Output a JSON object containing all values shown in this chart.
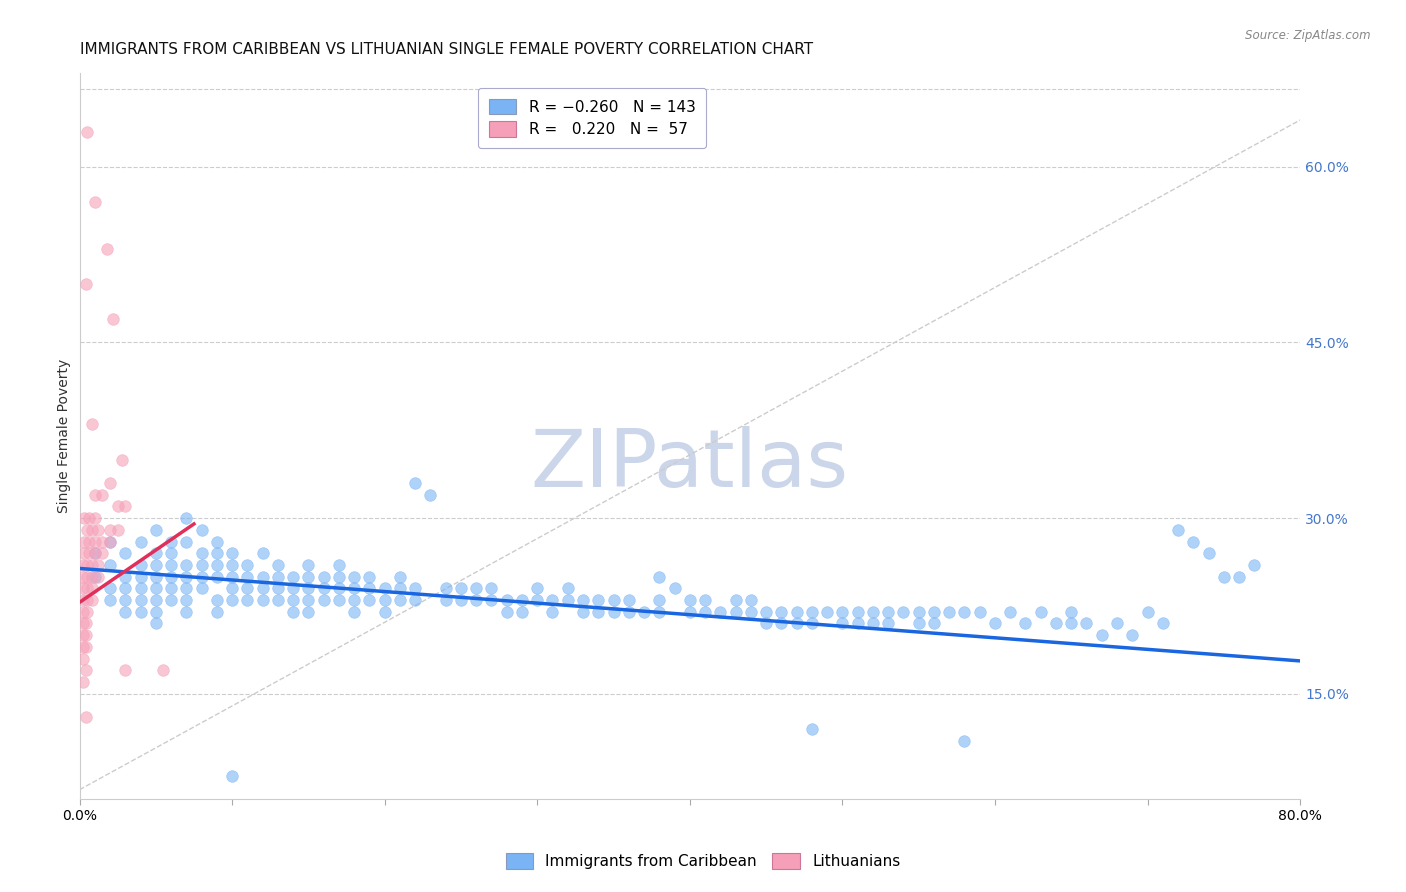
{
  "title": "IMMIGRANTS FROM CARIBBEAN VS LITHUANIAN SINGLE FEMALE POVERTY CORRELATION CHART",
  "source": "Source: ZipAtlas.com",
  "ylabel": "Single Female Poverty",
  "right_yticks": [
    0.15,
    0.3,
    0.45,
    0.6
  ],
  "right_ytick_labels": [
    "15.0%",
    "30.0%",
    "45.0%",
    "60.0%"
  ],
  "blue_scatter": [
    [
      0.01,
      0.27
    ],
    [
      0.01,
      0.25
    ],
    [
      0.02,
      0.28
    ],
    [
      0.02,
      0.26
    ],
    [
      0.02,
      0.24
    ],
    [
      0.02,
      0.23
    ],
    [
      0.03,
      0.27
    ],
    [
      0.03,
      0.25
    ],
    [
      0.03,
      0.24
    ],
    [
      0.03,
      0.23
    ],
    [
      0.03,
      0.22
    ],
    [
      0.04,
      0.28
    ],
    [
      0.04,
      0.26
    ],
    [
      0.04,
      0.25
    ],
    [
      0.04,
      0.24
    ],
    [
      0.04,
      0.23
    ],
    [
      0.04,
      0.22
    ],
    [
      0.05,
      0.29
    ],
    [
      0.05,
      0.27
    ],
    [
      0.05,
      0.26
    ],
    [
      0.05,
      0.25
    ],
    [
      0.05,
      0.24
    ],
    [
      0.05,
      0.23
    ],
    [
      0.05,
      0.22
    ],
    [
      0.05,
      0.21
    ],
    [
      0.06,
      0.28
    ],
    [
      0.06,
      0.27
    ],
    [
      0.06,
      0.26
    ],
    [
      0.06,
      0.25
    ],
    [
      0.06,
      0.24
    ],
    [
      0.06,
      0.23
    ],
    [
      0.07,
      0.3
    ],
    [
      0.07,
      0.28
    ],
    [
      0.07,
      0.26
    ],
    [
      0.07,
      0.25
    ],
    [
      0.07,
      0.24
    ],
    [
      0.07,
      0.23
    ],
    [
      0.07,
      0.22
    ],
    [
      0.08,
      0.29
    ],
    [
      0.08,
      0.27
    ],
    [
      0.08,
      0.26
    ],
    [
      0.08,
      0.25
    ],
    [
      0.08,
      0.24
    ],
    [
      0.09,
      0.28
    ],
    [
      0.09,
      0.27
    ],
    [
      0.09,
      0.26
    ],
    [
      0.09,
      0.25
    ],
    [
      0.09,
      0.23
    ],
    [
      0.09,
      0.22
    ],
    [
      0.1,
      0.27
    ],
    [
      0.1,
      0.26
    ],
    [
      0.1,
      0.25
    ],
    [
      0.1,
      0.24
    ],
    [
      0.1,
      0.23
    ],
    [
      0.11,
      0.26
    ],
    [
      0.11,
      0.25
    ],
    [
      0.11,
      0.24
    ],
    [
      0.11,
      0.23
    ],
    [
      0.12,
      0.27
    ],
    [
      0.12,
      0.25
    ],
    [
      0.12,
      0.24
    ],
    [
      0.12,
      0.23
    ],
    [
      0.13,
      0.26
    ],
    [
      0.13,
      0.25
    ],
    [
      0.13,
      0.24
    ],
    [
      0.13,
      0.23
    ],
    [
      0.14,
      0.25
    ],
    [
      0.14,
      0.24
    ],
    [
      0.14,
      0.23
    ],
    [
      0.14,
      0.22
    ],
    [
      0.15,
      0.26
    ],
    [
      0.15,
      0.25
    ],
    [
      0.15,
      0.24
    ],
    [
      0.15,
      0.23
    ],
    [
      0.15,
      0.22
    ],
    [
      0.16,
      0.25
    ],
    [
      0.16,
      0.24
    ],
    [
      0.16,
      0.23
    ],
    [
      0.17,
      0.26
    ],
    [
      0.17,
      0.25
    ],
    [
      0.17,
      0.24
    ],
    [
      0.17,
      0.23
    ],
    [
      0.18,
      0.25
    ],
    [
      0.18,
      0.24
    ],
    [
      0.18,
      0.23
    ],
    [
      0.18,
      0.22
    ],
    [
      0.19,
      0.25
    ],
    [
      0.19,
      0.24
    ],
    [
      0.19,
      0.23
    ],
    [
      0.2,
      0.24
    ],
    [
      0.2,
      0.23
    ],
    [
      0.2,
      0.22
    ],
    [
      0.21,
      0.25
    ],
    [
      0.21,
      0.24
    ],
    [
      0.21,
      0.23
    ],
    [
      0.22,
      0.33
    ],
    [
      0.22,
      0.24
    ],
    [
      0.22,
      0.23
    ],
    [
      0.23,
      0.32
    ],
    [
      0.24,
      0.24
    ],
    [
      0.24,
      0.23
    ],
    [
      0.25,
      0.24
    ],
    [
      0.25,
      0.23
    ],
    [
      0.26,
      0.24
    ],
    [
      0.26,
      0.23
    ],
    [
      0.27,
      0.24
    ],
    [
      0.27,
      0.23
    ],
    [
      0.28,
      0.23
    ],
    [
      0.28,
      0.22
    ],
    [
      0.29,
      0.23
    ],
    [
      0.29,
      0.22
    ],
    [
      0.3,
      0.24
    ],
    [
      0.3,
      0.23
    ],
    [
      0.31,
      0.23
    ],
    [
      0.31,
      0.22
    ],
    [
      0.32,
      0.24
    ],
    [
      0.32,
      0.23
    ],
    [
      0.33,
      0.23
    ],
    [
      0.33,
      0.22
    ],
    [
      0.34,
      0.23
    ],
    [
      0.34,
      0.22
    ],
    [
      0.35,
      0.23
    ],
    [
      0.35,
      0.22
    ],
    [
      0.36,
      0.23
    ],
    [
      0.36,
      0.22
    ],
    [
      0.37,
      0.22
    ],
    [
      0.38,
      0.25
    ],
    [
      0.38,
      0.23
    ],
    [
      0.38,
      0.22
    ],
    [
      0.39,
      0.24
    ],
    [
      0.4,
      0.23
    ],
    [
      0.4,
      0.22
    ],
    [
      0.41,
      0.23
    ],
    [
      0.41,
      0.22
    ],
    [
      0.42,
      0.22
    ],
    [
      0.43,
      0.23
    ],
    [
      0.43,
      0.22
    ],
    [
      0.44,
      0.23
    ],
    [
      0.44,
      0.22
    ],
    [
      0.45,
      0.22
    ],
    [
      0.45,
      0.21
    ],
    [
      0.46,
      0.22
    ],
    [
      0.46,
      0.21
    ],
    [
      0.47,
      0.22
    ],
    [
      0.47,
      0.21
    ],
    [
      0.48,
      0.22
    ],
    [
      0.48,
      0.21
    ],
    [
      0.48,
      0.12
    ],
    [
      0.49,
      0.22
    ],
    [
      0.5,
      0.22
    ],
    [
      0.5,
      0.21
    ],
    [
      0.51,
      0.22
    ],
    [
      0.51,
      0.21
    ],
    [
      0.52,
      0.22
    ],
    [
      0.52,
      0.21
    ],
    [
      0.53,
      0.22
    ],
    [
      0.53,
      0.21
    ],
    [
      0.54,
      0.22
    ],
    [
      0.55,
      0.22
    ],
    [
      0.55,
      0.21
    ],
    [
      0.56,
      0.22
    ],
    [
      0.56,
      0.21
    ],
    [
      0.57,
      0.22
    ],
    [
      0.58,
      0.22
    ],
    [
      0.59,
      0.22
    ],
    [
      0.6,
      0.21
    ],
    [
      0.61,
      0.22
    ],
    [
      0.62,
      0.21
    ],
    [
      0.63,
      0.22
    ],
    [
      0.64,
      0.21
    ],
    [
      0.65,
      0.22
    ],
    [
      0.65,
      0.21
    ],
    [
      0.66,
      0.21
    ],
    [
      0.67,
      0.2
    ],
    [
      0.68,
      0.21
    ],
    [
      0.69,
      0.2
    ],
    [
      0.7,
      0.22
    ],
    [
      0.71,
      0.21
    ],
    [
      0.72,
      0.29
    ],
    [
      0.73,
      0.28
    ],
    [
      0.74,
      0.27
    ],
    [
      0.75,
      0.25
    ],
    [
      0.76,
      0.25
    ],
    [
      0.77,
      0.26
    ],
    [
      0.58,
      0.11
    ],
    [
      0.1,
      0.08
    ]
  ],
  "pink_scatter": [
    [
      0.005,
      0.63
    ],
    [
      0.01,
      0.57
    ],
    [
      0.018,
      0.53
    ],
    [
      0.004,
      0.5
    ],
    [
      0.022,
      0.47
    ],
    [
      0.008,
      0.38
    ],
    [
      0.028,
      0.35
    ],
    [
      0.02,
      0.33
    ],
    [
      0.01,
      0.32
    ],
    [
      0.015,
      0.32
    ],
    [
      0.025,
      0.31
    ],
    [
      0.03,
      0.31
    ],
    [
      0.003,
      0.3
    ],
    [
      0.006,
      0.3
    ],
    [
      0.01,
      0.3
    ],
    [
      0.005,
      0.29
    ],
    [
      0.008,
      0.29
    ],
    [
      0.012,
      0.29
    ],
    [
      0.02,
      0.29
    ],
    [
      0.025,
      0.29
    ],
    [
      0.003,
      0.28
    ],
    [
      0.006,
      0.28
    ],
    [
      0.01,
      0.28
    ],
    [
      0.015,
      0.28
    ],
    [
      0.02,
      0.28
    ],
    [
      0.003,
      0.27
    ],
    [
      0.006,
      0.27
    ],
    [
      0.01,
      0.27
    ],
    [
      0.015,
      0.27
    ],
    [
      0.002,
      0.26
    ],
    [
      0.005,
      0.26
    ],
    [
      0.008,
      0.26
    ],
    [
      0.012,
      0.26
    ],
    [
      0.002,
      0.25
    ],
    [
      0.005,
      0.25
    ],
    [
      0.008,
      0.25
    ],
    [
      0.012,
      0.25
    ],
    [
      0.002,
      0.24
    ],
    [
      0.005,
      0.24
    ],
    [
      0.008,
      0.24
    ],
    [
      0.002,
      0.23
    ],
    [
      0.005,
      0.23
    ],
    [
      0.008,
      0.23
    ],
    [
      0.002,
      0.22
    ],
    [
      0.005,
      0.22
    ],
    [
      0.002,
      0.21
    ],
    [
      0.004,
      0.21
    ],
    [
      0.002,
      0.2
    ],
    [
      0.004,
      0.2
    ],
    [
      0.002,
      0.19
    ],
    [
      0.004,
      0.19
    ],
    [
      0.002,
      0.18
    ],
    [
      0.004,
      0.17
    ],
    [
      0.03,
      0.17
    ],
    [
      0.055,
      0.17
    ],
    [
      0.002,
      0.16
    ],
    [
      0.004,
      0.13
    ]
  ],
  "blue_color": "#7ab4f5",
  "pink_color": "#f5a0b8",
  "blue_line_color": "#1a66e0",
  "pink_line_color": "#e0305a",
  "diagonal_color": "#cccccc",
  "watermark": "ZIPatlas",
  "watermark_color": "#ccd6ea",
  "title_fontsize": 11,
  "axis_label_fontsize": 10,
  "tick_fontsize": 10,
  "legend_fontsize": 11,
  "marker_size": 70,
  "xlim": [
    0.0,
    0.8
  ],
  "ylim": [
    0.06,
    0.68
  ],
  "blue_trend_x": [
    0.0,
    0.8
  ],
  "blue_trend_y": [
    0.257,
    0.178
  ],
  "pink_trend_x": [
    0.0,
    0.075
  ],
  "pink_trend_y": [
    0.228,
    0.295
  ],
  "xticks": [
    0.0,
    0.1,
    0.2,
    0.3,
    0.4,
    0.5,
    0.6,
    0.7,
    0.8
  ],
  "xtick_labels": [
    "0.0%",
    "",
    "",
    "",
    "",
    "",
    "",
    "",
    "80.0%"
  ]
}
